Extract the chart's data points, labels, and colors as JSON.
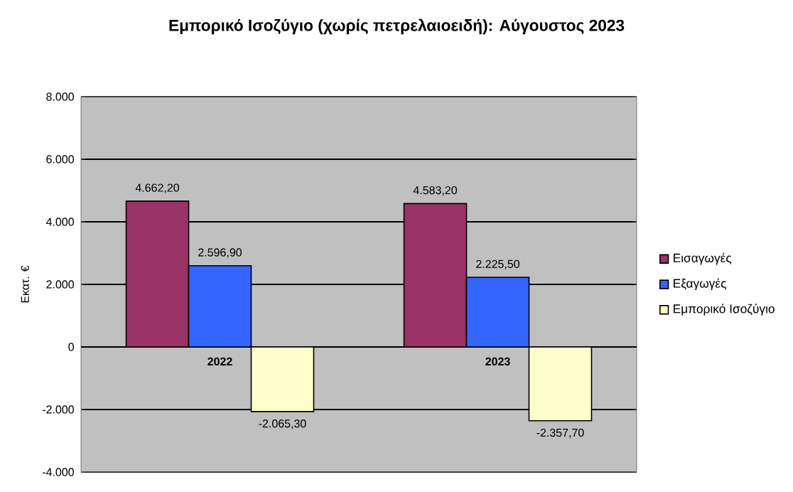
{
  "chart_data": {
    "type": "bar",
    "title": "Εμπορικό Ισοζύγιο (χωρίς πετρελαιοειδή): Αύγουστος 2023",
    "ylabel": "Εκατ. €",
    "categories": [
      "2022",
      "2023"
    ],
    "series": [
      {
        "name": "Εισαγωγές",
        "color": "#993366",
        "values": [
          4662.2,
          4583.2
        ],
        "value_labels": [
          "4.662,20",
          "4.583,20"
        ]
      },
      {
        "name": "Εξαγωγές",
        "color": "#3366ff",
        "values": [
          2596.9,
          2225.5
        ],
        "value_labels": [
          "2.596,90",
          "2.225,50"
        ]
      },
      {
        "name": "Εμπορικό Ισοζύγιο",
        "color": "#ffffcc",
        "values": [
          -2065.3,
          -2357.7
        ],
        "value_labels": [
          "-2.065,30",
          "-2.357,70"
        ]
      }
    ],
    "ylim": [
      -4000,
      8000
    ],
    "yticks": [
      {
        "value": -4000,
        "label": "-4.000"
      },
      {
        "value": -2000,
        "label": "-2.000"
      },
      {
        "value": 0,
        "label": "0"
      },
      {
        "value": 2000,
        "label": "2.000"
      },
      {
        "value": 4000,
        "label": "4.000"
      },
      {
        "value": 6000,
        "label": "6.000"
      },
      {
        "value": 8000,
        "label": "8.000"
      }
    ],
    "grid": "y",
    "legend": "right"
  }
}
